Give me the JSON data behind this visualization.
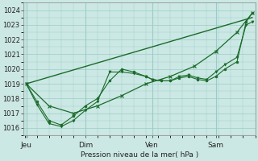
{
  "xlabel": "Pression niveau de la mer( hPa )",
  "bg_color": "#cce8e4",
  "grid_color": "#99ccc8",
  "line_color": "#1a6b2a",
  "y_min": 1015.5,
  "y_max": 1024.5,
  "y_ticks": [
    1016,
    1017,
    1018,
    1019,
    1020,
    1021,
    1022,
    1023,
    1024
  ],
  "x_tick_labels": [
    "Jeu",
    "Dim",
    "Ven",
    "Sam"
  ],
  "x_tick_positions": [
    0.05,
    2.0,
    4.2,
    6.3
  ],
  "x_min": -0.05,
  "x_max": 7.6,
  "smooth_x": [
    0.05,
    0.8,
    1.6,
    2.4,
    3.2,
    4.0,
    4.8,
    5.6,
    6.3,
    7.0,
    7.5
  ],
  "smooth_y": [
    1019.0,
    1017.5,
    1017.0,
    1017.5,
    1018.2,
    1019.0,
    1019.5,
    1020.2,
    1021.2,
    1022.5,
    1023.8
  ],
  "wavy1_x": [
    0.05,
    0.4,
    0.8,
    1.2,
    1.6,
    2.0,
    2.4,
    2.8,
    3.2,
    3.6,
    4.0,
    4.2,
    4.5,
    4.8,
    5.1,
    5.4,
    5.7,
    6.0,
    6.3,
    6.6,
    7.0,
    7.3,
    7.5
  ],
  "wavy1_y": [
    1019.0,
    1017.8,
    1016.5,
    1016.2,
    1016.8,
    1017.5,
    1018.0,
    1019.2,
    1020.0,
    1019.8,
    1019.5,
    1019.3,
    1019.2,
    1019.2,
    1019.4,
    1019.5,
    1019.3,
    1019.2,
    1019.5,
    1020.0,
    1020.5,
    1023.2,
    1023.8
  ],
  "wavy2_x": [
    0.05,
    0.4,
    0.8,
    1.2,
    1.6,
    2.0,
    2.4,
    2.8,
    3.2,
    3.6,
    4.0,
    4.2,
    4.5,
    4.8,
    5.1,
    5.4,
    5.7,
    6.0,
    6.3,
    6.6,
    7.0,
    7.3,
    7.5
  ],
  "wavy2_y": [
    1019.0,
    1017.6,
    1016.3,
    1016.1,
    1016.5,
    1017.2,
    1017.8,
    1019.8,
    1019.8,
    1019.7,
    1019.5,
    1019.3,
    1019.2,
    1019.2,
    1019.5,
    1019.6,
    1019.4,
    1019.3,
    1019.8,
    1020.3,
    1020.8,
    1023.0,
    1023.2
  ],
  "trend_x": [
    0.05,
    7.5
  ],
  "trend_y": [
    1019.0,
    1023.5
  ]
}
